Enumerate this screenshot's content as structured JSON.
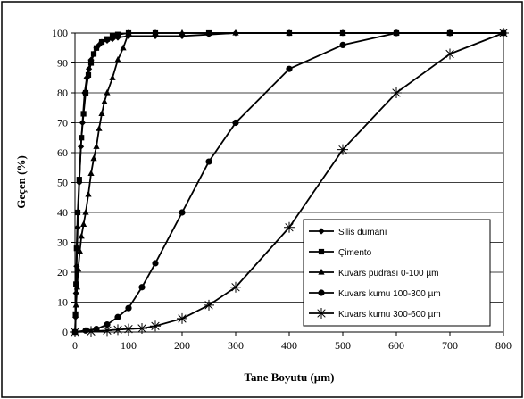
{
  "chart_data": {
    "type": "line",
    "xlabel": "Tane Boyutu (µm)",
    "ylabel": "Geçen (%)",
    "xlim": [
      0,
      800
    ],
    "ylim": [
      0,
      100
    ],
    "x_ticks": [
      "0",
      "100",
      "200",
      "300",
      "400",
      "500",
      "600",
      "700",
      "800"
    ],
    "y_ticks": [
      "0",
      "10",
      "20",
      "30",
      "40",
      "50",
      "60",
      "70",
      "80",
      "90",
      "100"
    ],
    "grid": "horizontal",
    "legend_position": "bottom-right",
    "series": [
      {
        "name": "Silis dumanı",
        "marker": "diamond",
        "points": [
          [
            0.1,
            0
          ],
          [
            1,
            5
          ],
          [
            2,
            13
          ],
          [
            3,
            22
          ],
          [
            5,
            35
          ],
          [
            8,
            50
          ],
          [
            11,
            62
          ],
          [
            14,
            70
          ],
          [
            18,
            80
          ],
          [
            22,
            85
          ],
          [
            26,
            88
          ],
          [
            30,
            91
          ],
          [
            35,
            93
          ],
          [
            40,
            95
          ],
          [
            45,
            96
          ],
          [
            50,
            97
          ],
          [
            60,
            97.5
          ],
          [
            70,
            98
          ],
          [
            80,
            98.5
          ],
          [
            100,
            99
          ],
          [
            150,
            99
          ],
          [
            200,
            99
          ],
          [
            250,
            99.5
          ],
          [
            300,
            100
          ],
          [
            400,
            100
          ],
          [
            500,
            100
          ],
          [
            600,
            100
          ],
          [
            700,
            100
          ],
          [
            800,
            100
          ]
        ]
      },
      {
        "name": "Çimento",
        "marker": "square",
        "points": [
          [
            0.2,
            0
          ],
          [
            1,
            6
          ],
          [
            2,
            16
          ],
          [
            3,
            28
          ],
          [
            5,
            40
          ],
          [
            8,
            51
          ],
          [
            12,
            65
          ],
          [
            16,
            73
          ],
          [
            20,
            80
          ],
          [
            25,
            86
          ],
          [
            30,
            90
          ],
          [
            35,
            93
          ],
          [
            40,
            95
          ],
          [
            50,
            97
          ],
          [
            60,
            98
          ],
          [
            70,
            99
          ],
          [
            80,
            99.5
          ],
          [
            100,
            100
          ],
          [
            150,
            100
          ],
          [
            250,
            100
          ],
          [
            400,
            100
          ],
          [
            500,
            100
          ],
          [
            600,
            100
          ],
          [
            700,
            100
          ],
          [
            800,
            100
          ]
        ]
      },
      {
        "name": "Kuvars pudrası 0-100 µm",
        "marker": "triangle",
        "points": [
          [
            0.5,
            0
          ],
          [
            2,
            9
          ],
          [
            4,
            15
          ],
          [
            6,
            21
          ],
          [
            9,
            27
          ],
          [
            12,
            32
          ],
          [
            16,
            36
          ],
          [
            20,
            40
          ],
          [
            25,
            46
          ],
          [
            30,
            53
          ],
          [
            35,
            58
          ],
          [
            40,
            62
          ],
          [
            45,
            68
          ],
          [
            50,
            73
          ],
          [
            55,
            77
          ],
          [
            60,
            80
          ],
          [
            70,
            85
          ],
          [
            80,
            91
          ],
          [
            90,
            95
          ],
          [
            100,
            100
          ],
          [
            150,
            100
          ],
          [
            200,
            100
          ],
          [
            300,
            100
          ],
          [
            400,
            100
          ],
          [
            500,
            100
          ],
          [
            600,
            100
          ],
          [
            700,
            100
          ],
          [
            800,
            100
          ]
        ]
      },
      {
        "name": "Kuvars kumu 100-300 µm",
        "marker": "circle",
        "points": [
          [
            0,
            0
          ],
          [
            20,
            0.5
          ],
          [
            40,
            1
          ],
          [
            60,
            2.5
          ],
          [
            80,
            5
          ],
          [
            100,
            8
          ],
          [
            125,
            15
          ],
          [
            150,
            23
          ],
          [
            200,
            40
          ],
          [
            250,
            57
          ],
          [
            300,
            70
          ],
          [
            400,
            88
          ],
          [
            500,
            96
          ],
          [
            600,
            100
          ],
          [
            700,
            100
          ],
          [
            800,
            100
          ]
        ]
      },
      {
        "name": "Kuvars kumu 300-600 µm",
        "marker": "star",
        "points": [
          [
            0,
            0
          ],
          [
            30,
            0.2
          ],
          [
            60,
            0.5
          ],
          [
            80,
            0.8
          ],
          [
            100,
            1
          ],
          [
            125,
            1.2
          ],
          [
            150,
            2
          ],
          [
            200,
            4.5
          ],
          [
            250,
            9
          ],
          [
            300,
            15
          ],
          [
            400,
            35
          ],
          [
            500,
            61
          ],
          [
            600,
            80
          ],
          [
            700,
            93
          ],
          [
            800,
            100
          ]
        ]
      }
    ]
  }
}
